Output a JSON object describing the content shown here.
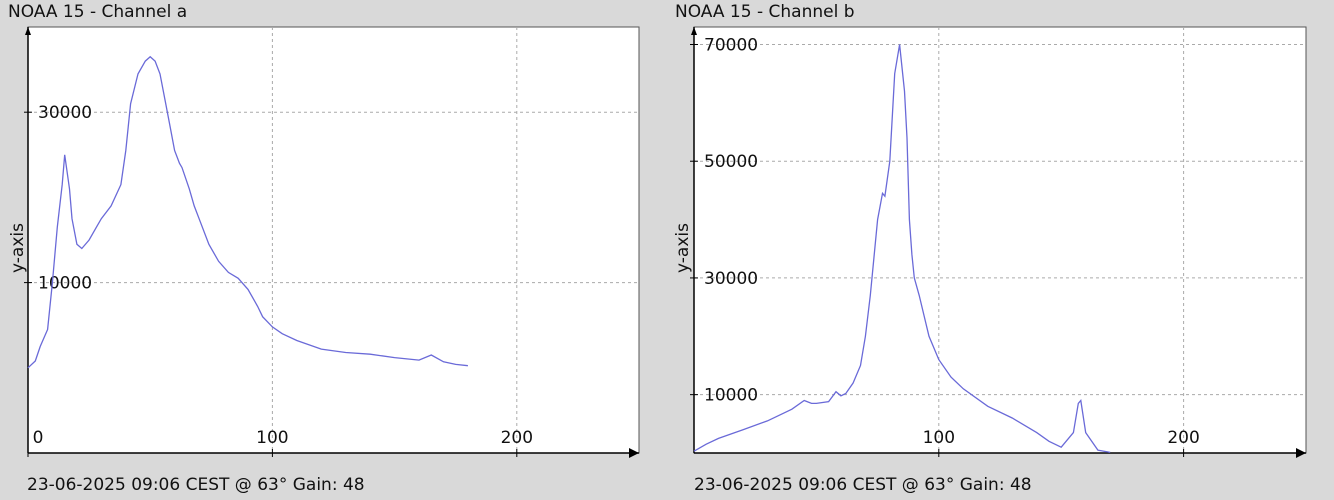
{
  "panels": [
    {
      "title": "NOAA 15 - Channel a",
      "footer": "23-06-2025 09:06 CEST @ 63° Gain: 48"
    },
    {
      "title": "NOAA 15 - Channel b",
      "footer": "23-06-2025 09:06 CEST @ 63° Gain: 48"
    }
  ],
  "colors": {
    "line": "#6a6ad8",
    "grid": "#aaaaaa",
    "plot_bg": "#ffffff",
    "page_bg": "#d9d9d9"
  },
  "chart_data": [
    {
      "type": "line",
      "title": "NOAA 15 - Channel a",
      "xlabel": "",
      "ylabel": "y-axis",
      "xlim": [
        0,
        250
      ],
      "ylim": [
        -10000,
        40000
      ],
      "xticks": [
        0,
        100,
        200
      ],
      "yticks": [
        10000,
        30000
      ],
      "grid": true,
      "series": [
        {
          "x": [
            0,
            3,
            5,
            8,
            10,
            12,
            14,
            15,
            17,
            18,
            20,
            22,
            25,
            28,
            30,
            34,
            38,
            40,
            42,
            45,
            48,
            50,
            52,
            54,
            56,
            58,
            60,
            62,
            63,
            66,
            68,
            70,
            74,
            78,
            82,
            86,
            90,
            94,
            96,
            100,
            104,
            110,
            120,
            130,
            140,
            150,
            160,
            165,
            170,
            175,
            180
          ],
          "y": [
            0,
            800,
            2500,
            4500,
            10000,
            16500,
            21500,
            25000,
            21000,
            17500,
            14500,
            14000,
            15000,
            16500,
            17500,
            19000,
            21500,
            25500,
            31000,
            34500,
            36000,
            36500,
            36000,
            34500,
            31500,
            28500,
            25500,
            24000,
            23500,
            21000,
            19000,
            17500,
            14500,
            12500,
            11200,
            10500,
            9200,
            7200,
            6000,
            4800,
            4000,
            3200,
            2200,
            1800,
            1600,
            1200,
            900,
            1500,
            700,
            400,
            250
          ]
        }
      ]
    },
    {
      "type": "line",
      "title": "NOAA 15 - Channel b",
      "xlabel": "",
      "ylabel": "y-axis",
      "xlim": [
        0,
        250
      ],
      "ylim": [
        0,
        73000
      ],
      "xticks": [
        100,
        200
      ],
      "yticks": [
        10000,
        30000,
        50000,
        70000
      ],
      "grid": true,
      "series": [
        {
          "x": [
            0,
            5,
            10,
            20,
            30,
            40,
            45,
            48,
            50,
            55,
            58,
            60,
            62,
            65,
            68,
            70,
            72,
            75,
            77,
            78,
            80,
            82,
            84,
            86,
            87,
            88,
            89,
            90,
            92,
            94,
            96,
            100,
            105,
            110,
            120,
            130,
            140,
            145,
            150,
            155,
            157,
            158,
            160,
            165,
            170
          ],
          "y": [
            300,
            1500,
            2500,
            4000,
            5500,
            7500,
            9000,
            8500,
            8500,
            8800,
            10500,
            9800,
            10200,
            12000,
            15000,
            20000,
            27000,
            40000,
            44500,
            44000,
            50000,
            65000,
            70000,
            62000,
            54000,
            40000,
            34000,
            30000,
            27000,
            23500,
            20000,
            16000,
            13000,
            11000,
            8000,
            6000,
            3500,
            2000,
            1000,
            3500,
            8500,
            9000,
            3500,
            500,
            100
          ]
        }
      ]
    }
  ]
}
